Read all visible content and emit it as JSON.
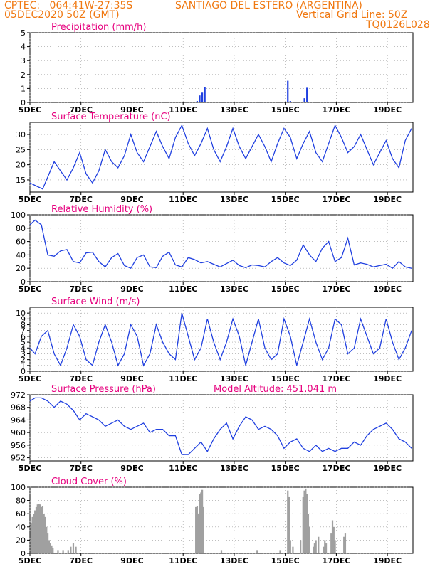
{
  "header": {
    "line1_left": "CPTEC:   064:41W-27:35S",
    "line1_right": "SANTIAGO DEL ESTERO (ARGENTINA)",
    "line2_left": "05DEC2020 50Z (GMT)",
    "line2_right": "Vertical Grid Line: 50Z",
    "line3_right": "TQ0126L028"
  },
  "colors": {
    "header": "#f07810",
    "title": "#e6007e",
    "series": "#2040e0",
    "cloud": "#a0a0a0"
  },
  "x_axis": {
    "ticks": [
      "5DEC",
      "7DEC",
      "9DEC",
      "11DEC",
      "13DEC",
      "15DEC",
      "17DEC",
      "19DEC"
    ],
    "tick_days": [
      5,
      7,
      9,
      11,
      13,
      15,
      17,
      19
    ],
    "range": [
      5,
      20
    ]
  },
  "chart_data": [
    {
      "type": "bar",
      "title": "Precipitation  (mm/h)",
      "ylim": [
        0,
        5
      ],
      "yticks": [
        0,
        1,
        2,
        3,
        4,
        5
      ],
      "x": [
        5.75,
        6.0,
        6.25,
        11.55,
        11.65,
        11.75,
        11.85,
        15.1,
        15.2,
        15.75,
        15.85,
        16.85
      ],
      "values": [
        0.05,
        0.05,
        0.05,
        0.1,
        0.5,
        0.7,
        1.1,
        1.55,
        0.1,
        0.3,
        1.05,
        0.05
      ]
    },
    {
      "type": "line",
      "title": "Surface Temperature (nC)",
      "ylim": [
        11,
        34
      ],
      "yticks": [
        15,
        20,
        25,
        30
      ],
      "x": [
        5.0,
        5.25,
        5.5,
        5.7,
        5.95,
        6.2,
        6.45,
        6.7,
        6.95,
        7.2,
        7.45,
        7.7,
        7.95,
        8.2,
        8.45,
        8.7,
        8.95,
        9.2,
        9.45,
        9.7,
        9.95,
        10.2,
        10.45,
        10.7,
        10.95,
        11.2,
        11.45,
        11.7,
        11.95,
        12.2,
        12.45,
        12.7,
        12.95,
        13.2,
        13.45,
        13.7,
        13.95,
        14.2,
        14.45,
        14.7,
        14.95,
        15.2,
        15.45,
        15.7,
        15.95,
        16.2,
        16.45,
        16.7,
        16.95,
        17.2,
        17.45,
        17.7,
        17.95,
        18.2,
        18.45,
        18.7,
        18.95,
        19.2,
        19.45,
        19.7,
        19.95
      ],
      "values": [
        14,
        13,
        12,
        16,
        21,
        18,
        15,
        19,
        24,
        17,
        14,
        18,
        25,
        21,
        19,
        23,
        30,
        24,
        21,
        26,
        31,
        26,
        22,
        29,
        33,
        27,
        23,
        27,
        32,
        25,
        21,
        26,
        32,
        26,
        22,
        26,
        30,
        26,
        21,
        27,
        32,
        29,
        22,
        27,
        31,
        24,
        21,
        27,
        33,
        29,
        24,
        26,
        30,
        25,
        20,
        24,
        28,
        22,
        19,
        28,
        32
      ]
    },
    {
      "type": "line",
      "title": "Relative Humidity (%)",
      "ylim": [
        0,
        100
      ],
      "yticks": [
        0,
        20,
        40,
        60,
        80,
        100
      ],
      "x": [
        5.0,
        5.2,
        5.45,
        5.7,
        5.95,
        6.2,
        6.45,
        6.7,
        6.95,
        7.2,
        7.45,
        7.7,
        7.95,
        8.2,
        8.45,
        8.7,
        8.95,
        9.2,
        9.45,
        9.7,
        9.95,
        10.2,
        10.45,
        10.7,
        10.95,
        11.2,
        11.45,
        11.7,
        11.95,
        12.2,
        12.45,
        12.7,
        12.95,
        13.2,
        13.45,
        13.7,
        13.95,
        14.2,
        14.45,
        14.7,
        14.95,
        15.2,
        15.45,
        15.7,
        15.95,
        16.2,
        16.45,
        16.7,
        16.95,
        17.2,
        17.45,
        17.7,
        17.95,
        18.2,
        18.45,
        18.7,
        18.95,
        19.2,
        19.45,
        19.7,
        19.95
      ],
      "values": [
        85,
        92,
        85,
        40,
        38,
        46,
        48,
        30,
        28,
        43,
        44,
        30,
        22,
        36,
        42,
        24,
        20,
        36,
        40,
        22,
        21,
        38,
        44,
        25,
        22,
        36,
        33,
        28,
        30,
        26,
        22,
        27,
        32,
        24,
        21,
        25,
        24,
        22,
        30,
        36,
        28,
        24,
        32,
        55,
        40,
        30,
        50,
        60,
        30,
        36,
        65,
        25,
        28,
        26,
        22,
        24,
        26,
        20,
        30,
        22,
        20
      ]
    },
    {
      "type": "line",
      "title": "Surface Wind (m/s)",
      "ylim": [
        0,
        11
      ],
      "yticks": [
        0,
        1,
        2,
        3,
        4,
        5,
        6,
        7,
        8,
        9,
        10
      ],
      "x": [
        5.0,
        5.2,
        5.45,
        5.7,
        5.95,
        6.2,
        6.45,
        6.7,
        6.95,
        7.2,
        7.45,
        7.7,
        7.95,
        8.2,
        8.45,
        8.7,
        8.95,
        9.2,
        9.45,
        9.7,
        9.95,
        10.2,
        10.45,
        10.7,
        10.95,
        11.2,
        11.45,
        11.7,
        11.95,
        12.2,
        12.45,
        12.7,
        12.95,
        13.2,
        13.45,
        13.7,
        13.95,
        14.2,
        14.45,
        14.7,
        14.95,
        15.2,
        15.45,
        15.7,
        15.95,
        16.2,
        16.45,
        16.7,
        16.95,
        17.2,
        17.45,
        17.7,
        17.95,
        18.2,
        18.45,
        18.7,
        18.95,
        19.2,
        19.45,
        19.7,
        19.95
      ],
      "values": [
        4,
        3,
        6,
        7,
        3,
        1,
        4,
        8,
        6,
        2,
        1,
        5,
        8,
        5,
        1,
        3,
        8,
        6,
        1,
        3,
        8,
        5,
        3,
        2,
        10,
        6,
        2,
        4,
        9,
        5,
        2,
        5,
        9,
        6,
        1,
        5,
        9,
        4,
        2,
        3,
        9,
        6,
        1,
        5,
        9,
        5,
        2,
        4,
        9,
        8,
        3,
        4,
        9,
        6,
        3,
        4,
        9,
        5,
        2,
        4,
        7
      ]
    },
    {
      "type": "line",
      "title": "Surface Pressure (hPa)",
      "annotation": "Model Altitude: 451.041  m",
      "ylim": [
        951,
        972
      ],
      "yticks": [
        952,
        956,
        960,
        964,
        968,
        972
      ],
      "x": [
        5.0,
        5.2,
        5.45,
        5.7,
        5.95,
        6.2,
        6.45,
        6.7,
        6.95,
        7.2,
        7.45,
        7.7,
        7.95,
        8.2,
        8.45,
        8.7,
        8.95,
        9.2,
        9.45,
        9.7,
        9.95,
        10.2,
        10.45,
        10.7,
        10.95,
        11.2,
        11.45,
        11.7,
        11.95,
        12.2,
        12.45,
        12.7,
        12.95,
        13.2,
        13.45,
        13.7,
        13.95,
        14.2,
        14.45,
        14.7,
        14.95,
        15.2,
        15.45,
        15.7,
        15.95,
        16.2,
        16.45,
        16.7,
        16.95,
        17.2,
        17.45,
        17.7,
        17.95,
        18.2,
        18.45,
        18.7,
        18.95,
        19.2,
        19.45,
        19.7,
        19.95
      ],
      "values": [
        970,
        971,
        971,
        970,
        968,
        970,
        969,
        967,
        964,
        966,
        965,
        964,
        962,
        963,
        964,
        962,
        961,
        962,
        963,
        960,
        961,
        961,
        959,
        959,
        953,
        953,
        955,
        957,
        954,
        958,
        961,
        963,
        958,
        962,
        965,
        964,
        961,
        962,
        961,
        959,
        955,
        957,
        958,
        955,
        954,
        956,
        954,
        955,
        954,
        955,
        955,
        957,
        956,
        959,
        961,
        962,
        963,
        961,
        958,
        957,
        955
      ]
    },
    {
      "type": "bar",
      "title": "Cloud Cover (%)",
      "ylim": [
        0,
        100
      ],
      "yticks": [
        0,
        20,
        40,
        60,
        80,
        100
      ],
      "x": [
        5.05,
        5.1,
        5.15,
        5.2,
        5.25,
        5.3,
        5.35,
        5.4,
        5.45,
        5.5,
        5.55,
        5.6,
        5.65,
        5.7,
        5.75,
        5.8,
        5.85,
        5.9,
        6.1,
        6.3,
        6.5,
        6.6,
        6.7,
        6.8,
        11.5,
        11.55,
        11.6,
        11.65,
        11.7,
        11.75,
        11.8,
        12.5,
        13.9,
        14.8,
        15.1,
        15.15,
        15.2,
        15.3,
        15.6,
        15.7,
        15.75,
        15.8,
        15.85,
        15.9,
        15.95,
        16.1,
        16.15,
        16.2,
        16.3,
        16.5,
        16.55,
        16.6,
        16.8,
        16.85,
        16.9,
        16.95,
        17.3,
        17.35
      ],
      "values": [
        45,
        55,
        60,
        65,
        70,
        74,
        75,
        74,
        70,
        72,
        60,
        55,
        40,
        30,
        20,
        15,
        12,
        8,
        5,
        5,
        5,
        10,
        15,
        10,
        70,
        72,
        60,
        90,
        92,
        96,
        70,
        5,
        5,
        5,
        95,
        85,
        20,
        10,
        20,
        85,
        95,
        98,
        90,
        60,
        40,
        10,
        15,
        20,
        25,
        10,
        20,
        15,
        30,
        50,
        40,
        20,
        25,
        30
      ]
    }
  ]
}
